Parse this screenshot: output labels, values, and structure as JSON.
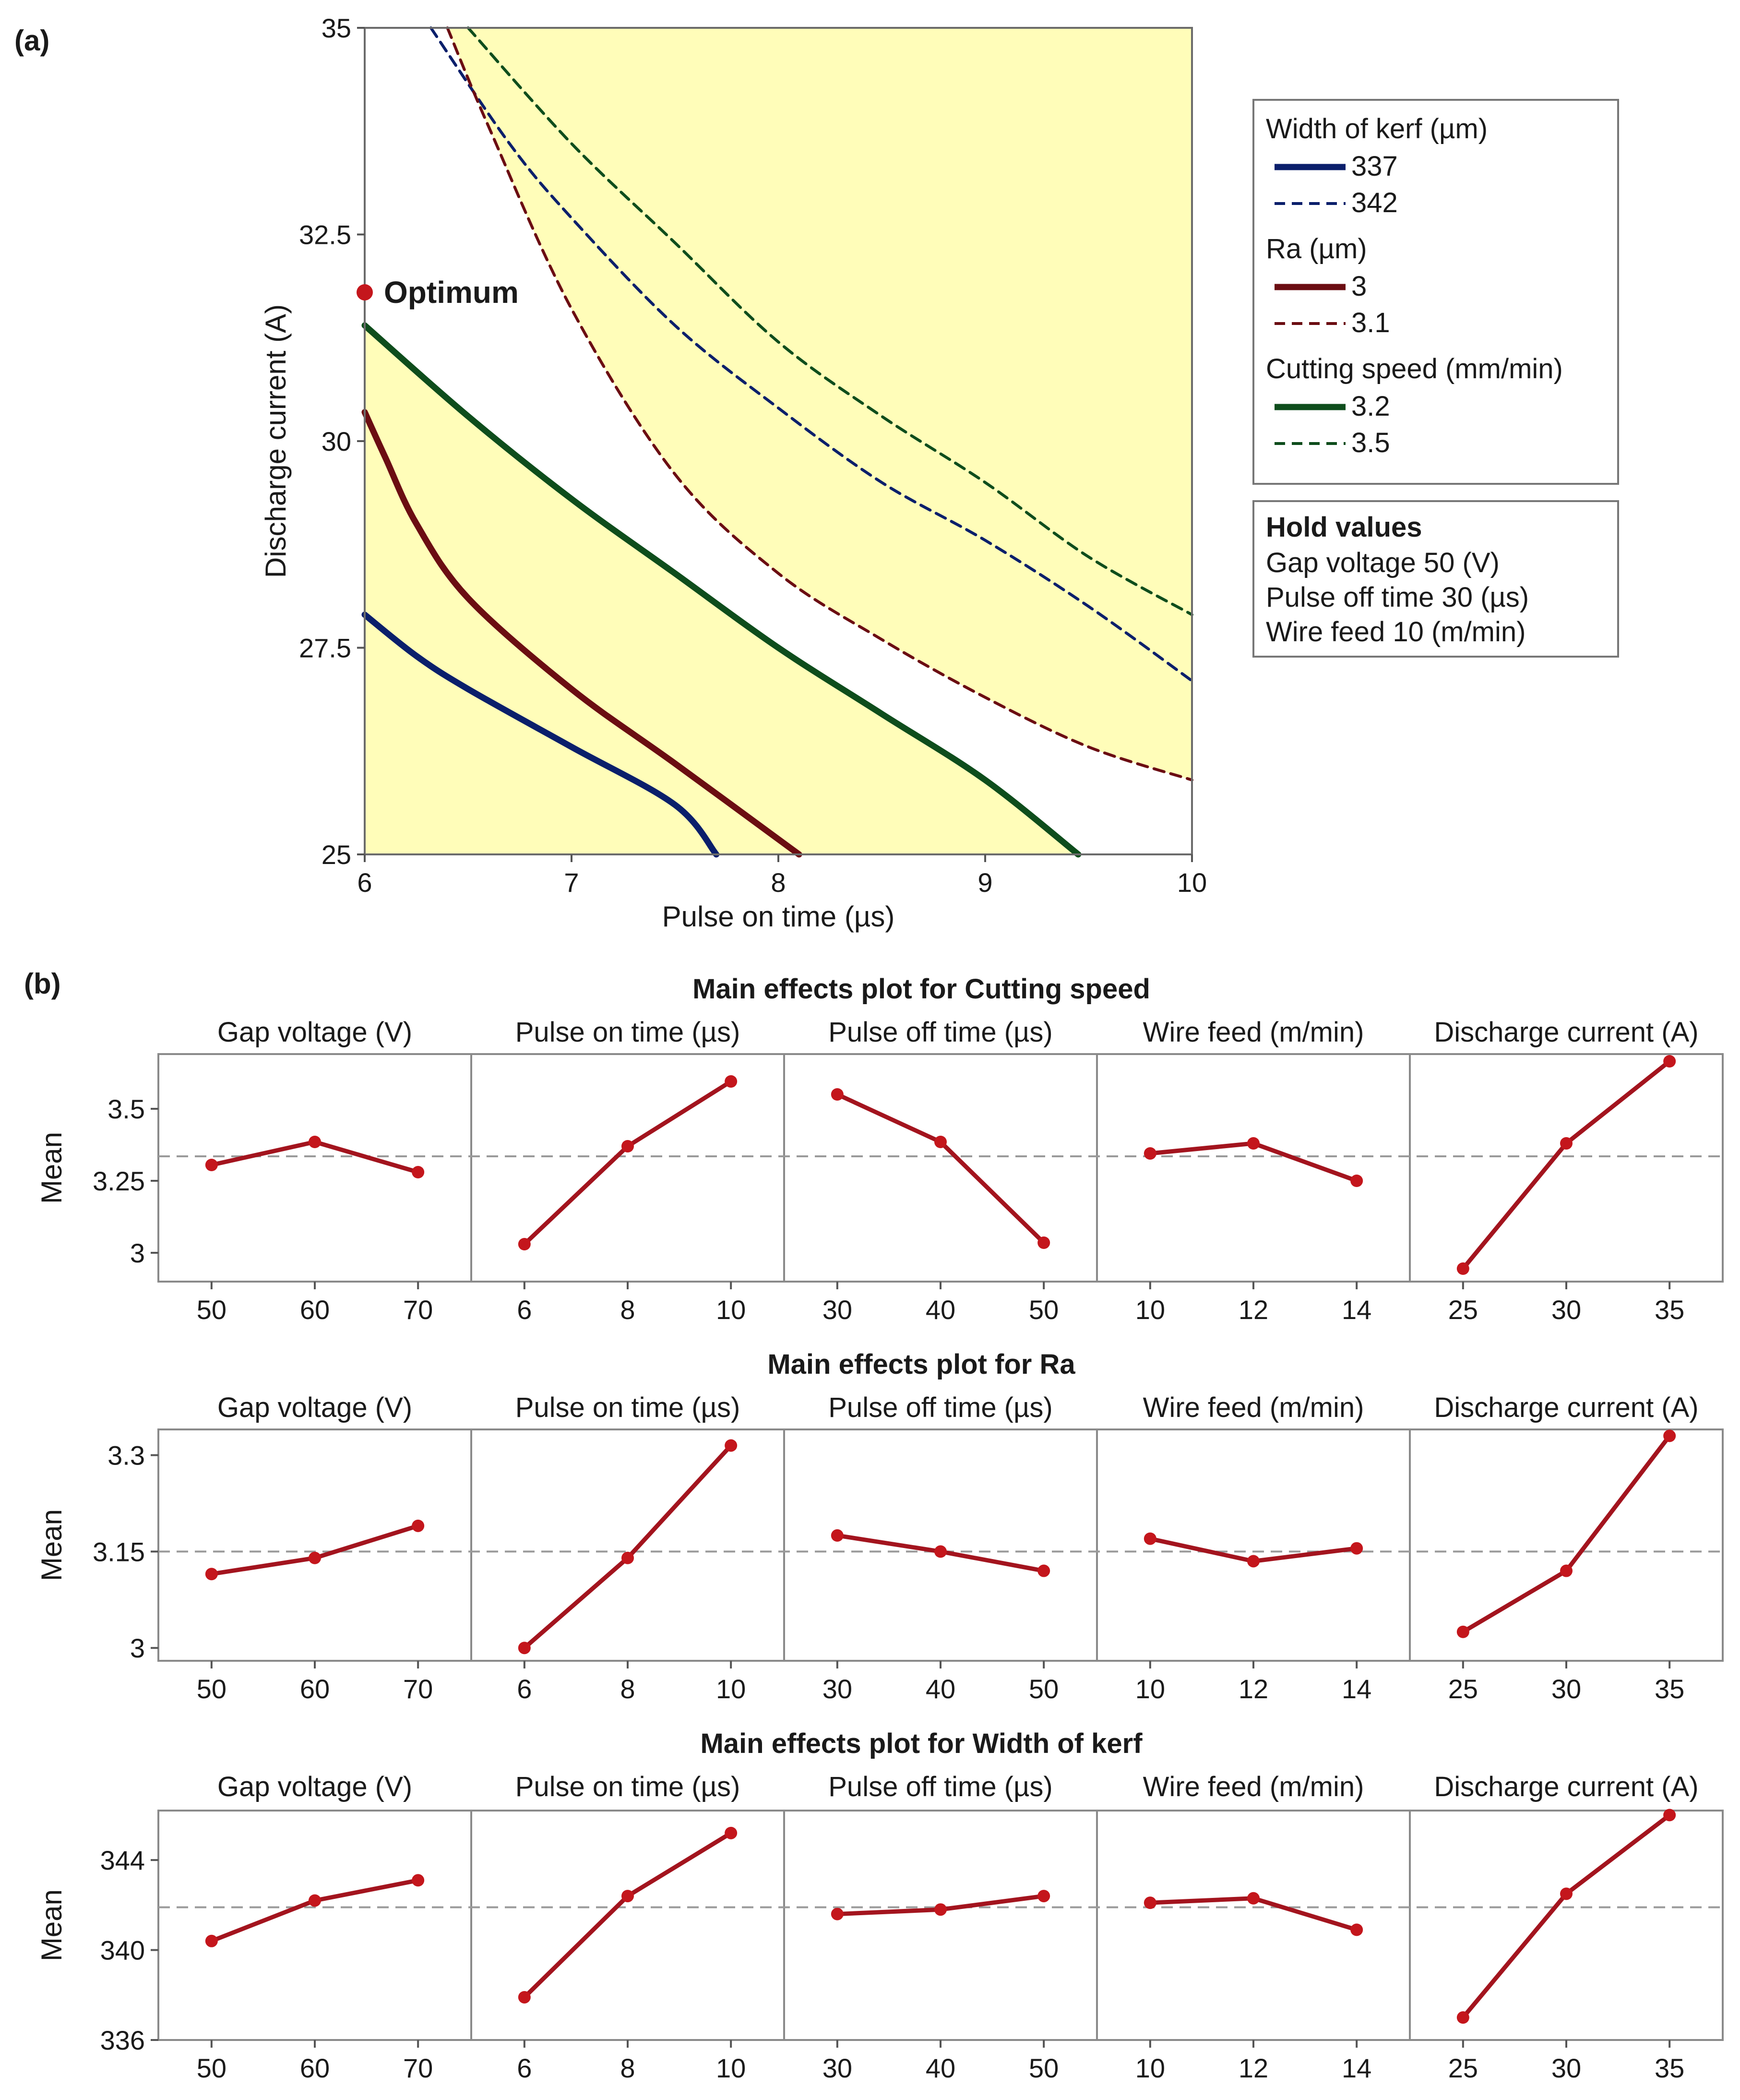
{
  "panel_labels": {
    "a": "(a)",
    "b": "(b)"
  },
  "colors": {
    "kerf": "#0a1f6b",
    "ra": "#6b0d12",
    "speed": "#0e4d1c",
    "feasible_fill": "#fffdb9",
    "effect_line": "#a3141e",
    "effect_point": "#c4161c",
    "mean_line": "#9a9a9a"
  },
  "chart_data": [
    {
      "type": "contour",
      "id": "overlaid-contour",
      "xlabel": "Pulse on time (µs)",
      "ylabel": "Discharge current (A)",
      "xlim": [
        6,
        10
      ],
      "ylim": [
        25,
        35
      ],
      "xticks": [
        "6",
        "7",
        "8",
        "9",
        "10"
      ],
      "yticks": [
        "25",
        "27.5",
        "30",
        "32.5",
        "35"
      ],
      "optimum": {
        "label": "Optimum",
        "x": 6,
        "y": 31.8
      },
      "series": [
        {
          "name": "337",
          "group": "Width of kerf (µm)",
          "style": "solid",
          "color": "kerf",
          "points": [
            [
              6,
              27.9
            ],
            [
              6.25,
              27.4
            ],
            [
              6.5,
              27.0
            ],
            [
              7.0,
              26.3
            ],
            [
              7.5,
              25.6
            ],
            [
              7.7,
              25.0
            ]
          ]
        },
        {
          "name": "342",
          "group": "Width of kerf (µm)",
          "style": "dashed",
          "color": "kerf",
          "points": [
            [
              6.32,
              35.0
            ],
            [
              6.7,
              33.6
            ],
            [
              7.0,
              32.7
            ],
            [
              7.5,
              31.4
            ],
            [
              8.0,
              30.4
            ],
            [
              8.5,
              29.5
            ],
            [
              9.0,
              28.8
            ],
            [
              9.5,
              28.0
            ],
            [
              10.0,
              27.1
            ]
          ]
        },
        {
          "name": "3",
          "group": "Ra (µm)",
          "style": "solid",
          "color": "ra",
          "points": [
            [
              6.0,
              30.35
            ],
            [
              6.1,
              29.8
            ],
            [
              6.25,
              29.0
            ],
            [
              6.5,
              28.1
            ],
            [
              7.0,
              27.0
            ],
            [
              7.5,
              26.1
            ],
            [
              8.1,
              25.0
            ]
          ]
        },
        {
          "name": "3.1",
          "group": "Ra (µm)",
          "style": "dashed",
          "color": "ra",
          "points": [
            [
              6.4,
              35.0
            ],
            [
              6.6,
              33.8
            ],
            [
              7.0,
              31.6
            ],
            [
              7.5,
              29.6
            ],
            [
              8.0,
              28.4
            ],
            [
              8.5,
              27.6
            ],
            [
              9.0,
              26.9
            ],
            [
              9.5,
              26.3
            ],
            [
              10.0,
              25.9
            ]
          ]
        },
        {
          "name": "3.2",
          "group": "Cutting speed (mm/min)",
          "style": "solid",
          "color": "speed",
          "points": [
            [
              6.0,
              31.4
            ],
            [
              6.5,
              30.3
            ],
            [
              7.0,
              29.3
            ],
            [
              7.5,
              28.4
            ],
            [
              8.0,
              27.5
            ],
            [
              8.5,
              26.7
            ],
            [
              9.0,
              25.9
            ],
            [
              9.45,
              25.0
            ]
          ]
        },
        {
          "name": "3.5",
          "group": "Cutting speed (mm/min)",
          "style": "dashed",
          "color": "speed",
          "points": [
            [
              6.5,
              35.0
            ],
            [
              7.0,
              33.6
            ],
            [
              7.5,
              32.4
            ],
            [
              8.0,
              31.2
            ],
            [
              8.5,
              30.3
            ],
            [
              9.0,
              29.5
            ],
            [
              9.5,
              28.6
            ],
            [
              10.0,
              27.9
            ]
          ]
        }
      ],
      "legend": {
        "groups": [
          {
            "title": "Width of kerf (µm)",
            "entries": [
              {
                "label": "337",
                "style": "solid",
                "color": "kerf"
              },
              {
                "label": "342",
                "style": "dashed",
                "color": "kerf"
              }
            ]
          },
          {
            "title": "Ra (µm)",
            "entries": [
              {
                "label": "3",
                "style": "solid",
                "color": "ra"
              },
              {
                "label": "3.1",
                "style": "dashed",
                "color": "ra"
              }
            ]
          },
          {
            "title": "Cutting speed (mm/min)",
            "entries": [
              {
                "label": "3.2",
                "style": "solid",
                "color": "speed"
              },
              {
                "label": "3.5",
                "style": "dashed",
                "color": "speed"
              }
            ]
          }
        ]
      },
      "hold_values": {
        "title": "Hold values",
        "lines": [
          "Gap voltage 50 (V)",
          "Pulse off time 30 (µs)",
          "Wire feed 10 (m/min)"
        ]
      }
    },
    {
      "type": "line",
      "id": "main-effects-cutting-speed",
      "title": "Main effects plot for Cutting speed",
      "ylabel": "Mean",
      "ylim": [
        2.9,
        3.69
      ],
      "yticks": [
        3.0,
        3.25,
        3.5
      ],
      "ytick_labels": [
        "3",
        "3.25",
        "3.5"
      ],
      "grand_mean": 3.335,
      "facets": [
        {
          "name": "Gap voltage (V)",
          "x": [
            "50",
            "60",
            "70"
          ],
          "values": [
            3.305,
            3.385,
            3.28
          ]
        },
        {
          "name": "Pulse on time (µs)",
          "x": [
            "6",
            "8",
            "10"
          ],
          "values": [
            3.03,
            3.37,
            3.595
          ]
        },
        {
          "name": "Pulse off time (µs)",
          "x": [
            "30",
            "40",
            "50"
          ],
          "values": [
            3.55,
            3.385,
            3.035
          ]
        },
        {
          "name": "Wire feed (m/min)",
          "x": [
            "10",
            "12",
            "14"
          ],
          "values": [
            3.345,
            3.38,
            3.25
          ]
        },
        {
          "name": "Discharge current (A)",
          "x": [
            "25",
            "30",
            "35"
          ],
          "values": [
            2.945,
            3.38,
            3.665
          ]
        }
      ]
    },
    {
      "type": "line",
      "id": "main-effects-ra",
      "title": "Main effects plot for Ra",
      "ylabel": "Mean",
      "ylim": [
        2.98,
        3.34
      ],
      "yticks": [
        3.0,
        3.15,
        3.3
      ],
      "ytick_labels": [
        "3",
        "3.15",
        "3.3"
      ],
      "grand_mean": 3.15,
      "facets": [
        {
          "name": "Gap voltage (V)",
          "x": [
            "50",
            "60",
            "70"
          ],
          "values": [
            3.115,
            3.14,
            3.19
          ]
        },
        {
          "name": "Pulse on time (µs)",
          "x": [
            "6",
            "8",
            "10"
          ],
          "values": [
            3.0,
            3.14,
            3.315
          ]
        },
        {
          "name": "Pulse off time (µs)",
          "x": [
            "30",
            "40",
            "50"
          ],
          "values": [
            3.175,
            3.15,
            3.12
          ]
        },
        {
          "name": "Wire feed (m/min)",
          "x": [
            "10",
            "12",
            "14"
          ],
          "values": [
            3.17,
            3.135,
            3.155
          ]
        },
        {
          "name": "Discharge current (A)",
          "x": [
            "25",
            "30",
            "35"
          ],
          "values": [
            3.025,
            3.12,
            3.33
          ]
        }
      ]
    },
    {
      "type": "line",
      "id": "main-effects-kerf",
      "title": "Main effects plot for Width of kerf",
      "ylabel": "Mean",
      "ylim": [
        336,
        346.2
      ],
      "yticks": [
        336,
        340,
        344
      ],
      "ytick_labels": [
        "336",
        "340",
        "344"
      ],
      "grand_mean": 341.9,
      "facets": [
        {
          "name": "Gap voltage (V)",
          "x": [
            "50",
            "60",
            "70"
          ],
          "values": [
            340.4,
            342.2,
            343.1
          ]
        },
        {
          "name": "Pulse on time (µs)",
          "x": [
            "6",
            "8",
            "10"
          ],
          "values": [
            337.9,
            342.4,
            345.2
          ]
        },
        {
          "name": "Pulse off time (µs)",
          "x": [
            "30",
            "40",
            "50"
          ],
          "values": [
            341.6,
            341.8,
            342.4
          ]
        },
        {
          "name": "Wire feed (m/min)",
          "x": [
            "10",
            "12",
            "14"
          ],
          "values": [
            342.1,
            342.3,
            340.9
          ]
        },
        {
          "name": "Discharge current (A)",
          "x": [
            "25",
            "30",
            "35"
          ],
          "values": [
            337.0,
            342.5,
            346.0
          ]
        }
      ]
    }
  ]
}
